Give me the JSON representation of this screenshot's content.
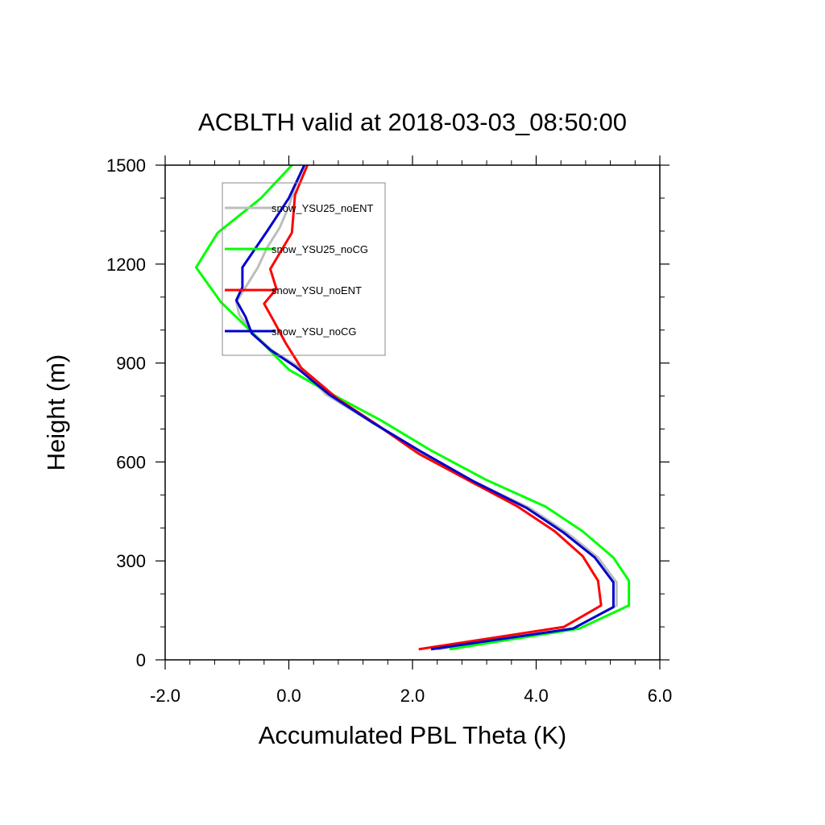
{
  "chart_data": {
    "type": "line",
    "title": "ACBLTH valid at 2018-03-03_08:50:00",
    "xlabel": "Accumulated PBL Theta (K)",
    "ylabel": "Height (m)",
    "xlim": [
      -2.0,
      6.0
    ],
    "ylim": [
      0,
      1500
    ],
    "x_ticks": [
      -2.0,
      0.0,
      2.0,
      4.0,
      6.0
    ],
    "x_tick_labels": [
      "-2.0",
      "0.0",
      "2.0",
      "4.0",
      "6.0"
    ],
    "y_ticks": [
      0,
      300,
      600,
      900,
      1200,
      1500
    ],
    "y_tick_labels": [
      "0",
      "300",
      "600",
      "900",
      "1200",
      "1500"
    ],
    "legend_position": "top-left",
    "grid": false,
    "series": [
      {
        "name": "snow_YSU25_noENT",
        "color": "#bdbdbd",
        "points": [
          [
            2.4,
            32
          ],
          [
            4.6,
            95
          ],
          [
            5.3,
            165
          ],
          [
            5.3,
            235
          ],
          [
            5.0,
            310
          ],
          [
            4.5,
            385
          ],
          [
            3.9,
            460
          ],
          [
            3.0,
            540
          ],
          [
            2.1,
            630
          ],
          [
            1.3,
            725
          ],
          [
            0.6,
            805
          ],
          [
            0.15,
            890
          ],
          [
            -0.25,
            935
          ],
          [
            -0.55,
            985
          ],
          [
            -0.8,
            1045
          ],
          [
            -0.85,
            1085
          ],
          [
            -0.7,
            1130
          ],
          [
            -0.5,
            1190
          ],
          [
            -0.35,
            1250
          ],
          [
            -0.15,
            1310
          ],
          [
            0.0,
            1375
          ],
          [
            0.1,
            1435
          ],
          [
            0.25,
            1500
          ]
        ]
      },
      {
        "name": "snow_YSU25_noCG",
        "color": "#00ff00",
        "points": [
          [
            2.6,
            32
          ],
          [
            4.7,
            95
          ],
          [
            5.5,
            165
          ],
          [
            5.5,
            240
          ],
          [
            5.25,
            310
          ],
          [
            4.75,
            390
          ],
          [
            4.15,
            465
          ],
          [
            3.2,
            545
          ],
          [
            2.3,
            635
          ],
          [
            1.5,
            725
          ],
          [
            0.7,
            805
          ],
          [
            0.0,
            880
          ],
          [
            -0.55,
            985
          ],
          [
            -1.1,
            1085
          ],
          [
            -1.5,
            1190
          ],
          [
            -1.15,
            1295
          ],
          [
            -0.45,
            1400
          ],
          [
            0.05,
            1500
          ]
        ]
      },
      {
        "name": "snow_YSU_noENT",
        "color": "#ff0000",
        "points": [
          [
            2.1,
            32
          ],
          [
            4.45,
            100
          ],
          [
            5.05,
            165
          ],
          [
            5.0,
            240
          ],
          [
            4.75,
            315
          ],
          [
            4.3,
            390
          ],
          [
            3.7,
            465
          ],
          [
            2.95,
            540
          ],
          [
            2.1,
            625
          ],
          [
            1.45,
            710
          ],
          [
            0.8,
            790
          ],
          [
            0.2,
            885
          ],
          [
            -0.05,
            960
          ],
          [
            -0.25,
            1030
          ],
          [
            -0.4,
            1080
          ],
          [
            -0.2,
            1125
          ],
          [
            -0.3,
            1185
          ],
          [
            0.05,
            1295
          ],
          [
            0.1,
            1410
          ],
          [
            0.3,
            1500
          ]
        ]
      },
      {
        "name": "snow_YSU_noCG",
        "color": "#0000cc",
        "points": [
          [
            2.3,
            32
          ],
          [
            4.6,
            95
          ],
          [
            5.25,
            160
          ],
          [
            5.25,
            235
          ],
          [
            4.95,
            310
          ],
          [
            4.45,
            385
          ],
          [
            3.85,
            460
          ],
          [
            3.0,
            540
          ],
          [
            2.15,
            630
          ],
          [
            1.35,
            720
          ],
          [
            0.65,
            805
          ],
          [
            0.1,
            890
          ],
          [
            -0.3,
            940
          ],
          [
            -0.6,
            990
          ],
          [
            -0.7,
            1040
          ],
          [
            -0.85,
            1090
          ],
          [
            -0.75,
            1130
          ],
          [
            -0.75,
            1190
          ],
          [
            -0.35,
            1300
          ],
          [
            0.0,
            1400
          ],
          [
            0.25,
            1500
          ]
        ]
      }
    ]
  }
}
